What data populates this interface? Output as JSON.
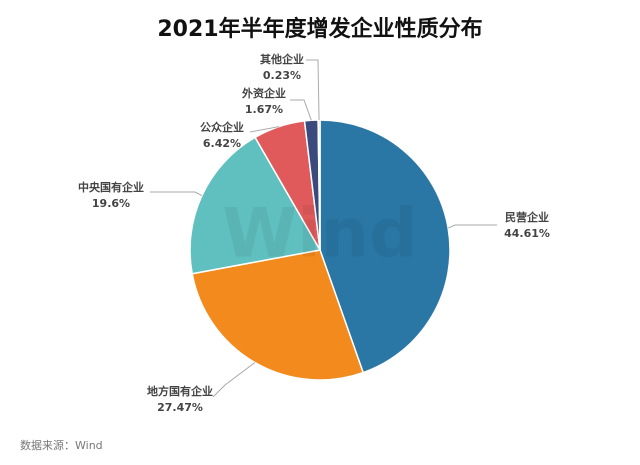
{
  "chart_data": {
    "type": "pie",
    "title": "2021年半年度增发企业性质分布",
    "categories": [
      "民营企业",
      "地方国有企业",
      "中央国有企业",
      "公众企业",
      "外资企业",
      "其他企业"
    ],
    "values": [
      44.61,
      27.47,
      19.6,
      6.42,
      1.67,
      0.23
    ],
    "value_labels": [
      "44.61%",
      "27.47%",
      "19.6%",
      "6.42%",
      "1.67%",
      "0.23%"
    ],
    "colors": [
      "#2a77a5",
      "#f38a1d",
      "#5fc0bf",
      "#e15a5b",
      "#3b4a7c",
      "#f3c12c"
    ],
    "watermark": "Wind",
    "source": "数据来源：Wind"
  }
}
